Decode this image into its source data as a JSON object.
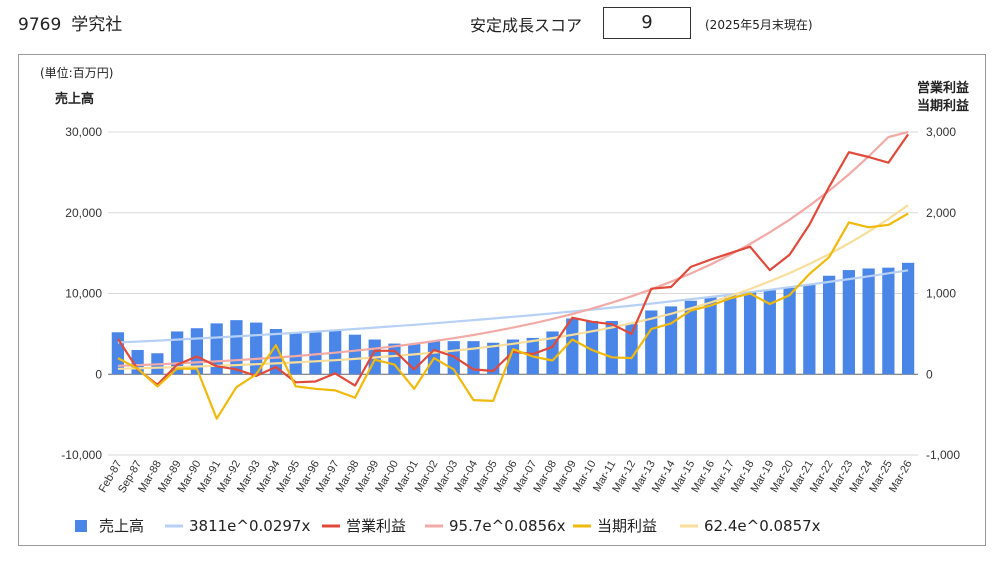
{
  "header": {
    "code": "9769",
    "company": "学究社",
    "score_label": "安定成長スコア",
    "score_value": "9",
    "as_of": "(2025年5月末現在)"
  },
  "chart_data": {
    "type": "bar",
    "unit_label": "(単位:百万円)",
    "ylabel": "売上高",
    "y2label_line1": "営業利益",
    "y2label_line2": "当期利益",
    "ylim": [
      -10000,
      30000
    ],
    "y2lim": [
      -1000,
      3000
    ],
    "yticks": [
      "-10,000",
      "0",
      "10,000",
      "20,000",
      "30,000"
    ],
    "y2ticks": [
      "-1,000",
      "0",
      "1,000",
      "2,000",
      "3,000"
    ],
    "grid": true,
    "legend_position": "bottom",
    "colors": {
      "sales": "#4a86e8",
      "sales_trend": "#b7d0f5",
      "op": "#e04a3b",
      "op_trend": "#f1aaa6",
      "net": "#f0b90b",
      "net_trend": "#f8de9a"
    },
    "categories": [
      "Feb-87",
      "Sep-87",
      "Mar-88",
      "Mar-89",
      "Mar-90",
      "Mar-91",
      "Mar-92",
      "Mar-93",
      "Mar-94",
      "Mar-95",
      "Mar-96",
      "Mar-97",
      "Mar-98",
      "Mar-99",
      "Mar-00",
      "Mar-01",
      "Mar-02",
      "Mar-03",
      "Mar-04",
      "Mar-05",
      "Mar-06",
      "Mar-07",
      "Mar-08",
      "Mar-09",
      "Mar-10",
      "Mar-11",
      "Mar-12",
      "Mar-13",
      "Mar-14",
      "Mar-15",
      "Mar-16",
      "Mar-17",
      "Mar-18",
      "Mar-19",
      "Mar-20",
      "Mar-21",
      "Mar-22",
      "Mar-23",
      "Mar-24",
      "Mar-25",
      "Mar-26"
    ],
    "series": [
      {
        "name": "売上高",
        "axis": "left",
        "kind": "bar",
        "values": [
          5200,
          3000,
          2600,
          5300,
          5700,
          6300,
          6700,
          6400,
          5600,
          5200,
          5200,
          5500,
          4900,
          4300,
          3800,
          3800,
          4100,
          4100,
          4100,
          3900,
          4300,
          4500,
          5300,
          6900,
          6600,
          6600,
          6200,
          7900,
          8400,
          9100,
          9500,
          9800,
          10200,
          10400,
          10700,
          11100,
          12200,
          12900,
          13100,
          13200,
          13800
        ]
      },
      {
        "name": "営業利益",
        "axis": "right",
        "kind": "line",
        "values": [
          440,
          60,
          -130,
          120,
          220,
          100,
          60,
          -20,
          90,
          -100,
          -90,
          10,
          -140,
          290,
          290,
          60,
          300,
          220,
          60,
          40,
          280,
          250,
          340,
          700,
          650,
          620,
          500,
          1060,
          1080,
          1330,
          1420,
          1500,
          1580,
          1290,
          1480,
          1850,
          2320,
          2750,
          2690,
          2620,
          2970
        ]
      },
      {
        "name": "当期利益",
        "axis": "right",
        "kind": "line",
        "values": [
          200,
          70,
          -150,
          70,
          70,
          -550,
          -160,
          0,
          360,
          -150,
          -180,
          -200,
          -290,
          180,
          120,
          -180,
          200,
          60,
          -320,
          -330,
          310,
          220,
          170,
          430,
          300,
          210,
          200,
          560,
          630,
          790,
          850,
          940,
          1000,
          870,
          980,
          1240,
          1450,
          1880,
          1820,
          1850,
          1990
        ]
      }
    ],
    "trends": [
      {
        "name": "3811e^0.0297x",
        "axis": "left",
        "a": 3811,
        "b": 0.0297
      },
      {
        "name": "95.7e^0.0856x",
        "axis": "right",
        "a": 95.7,
        "b": 0.0856
      },
      {
        "name": "62.4e^0.0857x",
        "axis": "right",
        "a": 62.4,
        "b": 0.0857
      }
    ],
    "legend": [
      "売上高",
      "3811e^0.0297x",
      "営業利益",
      "95.7e^0.0856x",
      "当期利益",
      "62.4e^0.0857x"
    ]
  }
}
